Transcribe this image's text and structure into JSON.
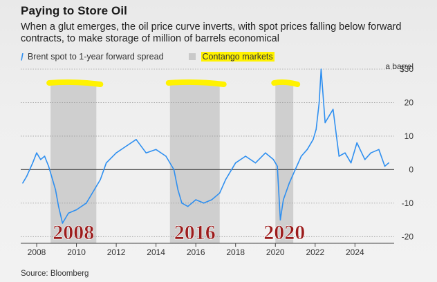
{
  "header": {
    "title": "Paying to Store Oil",
    "subtitle": "When a glut emerges, the oil price curve inverts, with spot prices falling below forward contracts, to make storage of million of barrels economical"
  },
  "legend": {
    "series_label": "Brent spot to 1-year forward spread",
    "band_label": "Contango markets"
  },
  "source": "Source: Bloomberg",
  "colors": {
    "line": "#2e8ff0",
    "band": "#c9c9c9",
    "highlight": "#fff200",
    "annotation": "#9b1c1c"
  },
  "chart_data": {
    "type": "line",
    "title": "Paying to Store Oil",
    "series": [
      {
        "name": "Brent spot to 1-year forward spread",
        "x": [
          2007.3,
          2007.5,
          2007.8,
          2008.0,
          2008.2,
          2008.4,
          2008.6,
          2008.8,
          2008.95,
          2009.1,
          2009.3,
          2009.6,
          2010.0,
          2010.5,
          2011.0,
          2011.2,
          2011.5,
          2012.0,
          2012.5,
          2013.0,
          2013.5,
          2014.0,
          2014.5,
          2014.9,
          2015.1,
          2015.3,
          2015.6,
          2016.0,
          2016.4,
          2016.8,
          2017.2,
          2017.5,
          2018.0,
          2018.5,
          2019.0,
          2019.5,
          2019.9,
          2020.1,
          2020.25,
          2020.4,
          2020.7,
          2021.0,
          2021.3,
          2021.6,
          2021.9,
          2022.05,
          2022.2,
          2022.3,
          2022.5,
          2022.7,
          2022.9,
          2023.2,
          2023.5,
          2023.8,
          2024.1,
          2024.5,
          2024.8,
          2025.2,
          2025.5,
          2025.7
        ],
        "values": [
          -4,
          -2,
          2,
          5,
          3,
          4,
          1,
          -3,
          -6,
          -11,
          -16,
          -13,
          -12,
          -10,
          -5,
          -3,
          2,
          5,
          7,
          9,
          5,
          6,
          4,
          0,
          -6,
          -10,
          -11,
          -9,
          -10,
          -9,
          -7,
          -3,
          2,
          4,
          2,
          5,
          3,
          1,
          -15,
          -9,
          -4,
          0,
          4,
          6,
          9,
          12,
          20,
          30,
          14,
          16,
          18,
          4,
          5,
          2,
          8,
          3,
          5,
          6,
          1,
          2
        ]
      }
    ],
    "bands": [
      {
        "from": 2008.7,
        "to": 2011.0,
        "annotation": "2008"
      },
      {
        "from": 2014.7,
        "to": 2017.2,
        "annotation": "2016"
      },
      {
        "from": 2020.0,
        "to": 2020.9,
        "annotation": "2020"
      }
    ],
    "x_ticks": [
      "2008",
      "2010",
      "2012",
      "2014",
      "2016",
      "2018",
      "2020",
      "2022",
      "2024"
    ],
    "y_ticks": [
      "$30",
      "20",
      "10",
      "0",
      "-10",
      "-20"
    ],
    "y_unit": "a barrel",
    "xlim": [
      2007.2,
      2025.9
    ],
    "ylim": [
      -22,
      30
    ]
  }
}
